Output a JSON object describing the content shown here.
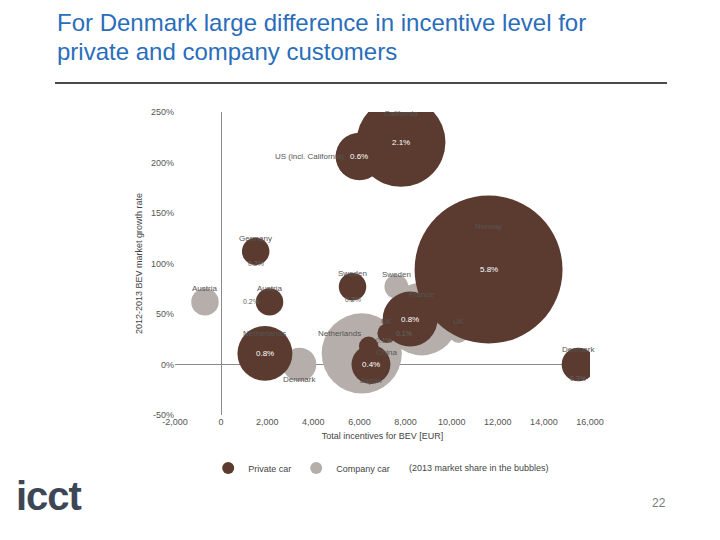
{
  "chart_data": {
    "type": "scatter",
    "title": "For Denmark large difference in incentive level for private and company customers",
    "x_label": "Total incentives for BEV [EUR]",
    "y_label": "2012-2013 BEV market growth rate",
    "legend_note": "(2013 market share in the bubbles)",
    "page_number": "22",
    "logo": "icct",
    "xlim": [
      -2000,
      16000
    ],
    "xticks": [
      {
        "value": -2000,
        "label": "-2,000"
      },
      0,
      {
        "value": 2000,
        "label": "2,000"
      },
      {
        "value": 4000,
        "label": "4,000"
      },
      {
        "value": 6000,
        "label": "6,000"
      },
      {
        "value": 8000,
        "label": "8,000"
      },
      {
        "value": 10000,
        "label": "10,000"
      },
      {
        "value": 12000,
        "label": "12,000"
      },
      {
        "value": 14000,
        "label": "14,000"
      },
      {
        "value": 16000,
        "label": "16,000"
      }
    ],
    "ylim": [
      -50,
      250
    ],
    "yticks": [
      {
        "value": -50,
        "label": "-50%"
      },
      {
        "value": 0,
        "label": "0%"
      },
      {
        "value": 50,
        "label": "50%"
      },
      {
        "value": 100,
        "label": "100%"
      },
      {
        "value": 150,
        "label": "150%"
      },
      {
        "value": 200,
        "label": "200%"
      },
      {
        "value": 250,
        "label": "250%"
      }
    ],
    "grid": false,
    "legend": "bottom",
    "series": [
      {
        "name": "Private car",
        "color": "#5b3b2f",
        "marker": "circle",
        "labels": [
          "California",
          "US (incl. California)",
          "Germany",
          "Austria",
          "Sweden",
          "Norway",
          null,
          "UK",
          "Netherlands",
          "China",
          "Japan",
          "Denmark"
        ],
        "x": [
          7800,
          6000,
          1500,
          2100,
          5700,
          11600,
          8200,
          7200,
          1900,
          6400,
          6500,
          15500
        ],
        "values": [
          220,
          206,
          112,
          62,
          77,
          94,
          45,
          31,
          11,
          18,
          0,
          0
        ],
        "sizes": [
          2.1,
          0.6,
          0.2,
          0.2,
          0.2,
          5.8,
          0.8,
          0.1,
          0.8,
          0.1,
          0.4,
          0.3
        ],
        "size_labels": [
          "2.1%",
          "0.6%",
          "0.2%",
          "0.2%",
          "0.2%",
          "5.8%",
          "0.8%",
          "0.1%",
          "0.8%",
          "0.1%",
          "0.4%",
          "0.3%"
        ]
      },
      {
        "name": "Company car",
        "color": "#b5aeaa",
        "marker": "circle",
        "labels": [
          "Austria",
          "Sweden",
          "France",
          "UK",
          "Netherlands",
          "Denmark"
        ],
        "x": [
          -700,
          7600,
          8700,
          10300,
          6100,
          3400
        ],
        "values": [
          62,
          77,
          45,
          31,
          11,
          0
        ],
        "sizes": [
          0.2,
          0.15,
          1.4,
          0.1,
          1.7,
          0.3
        ],
        "size_labels": [
          null,
          null,
          null,
          null,
          null,
          null
        ]
      }
    ]
  }
}
